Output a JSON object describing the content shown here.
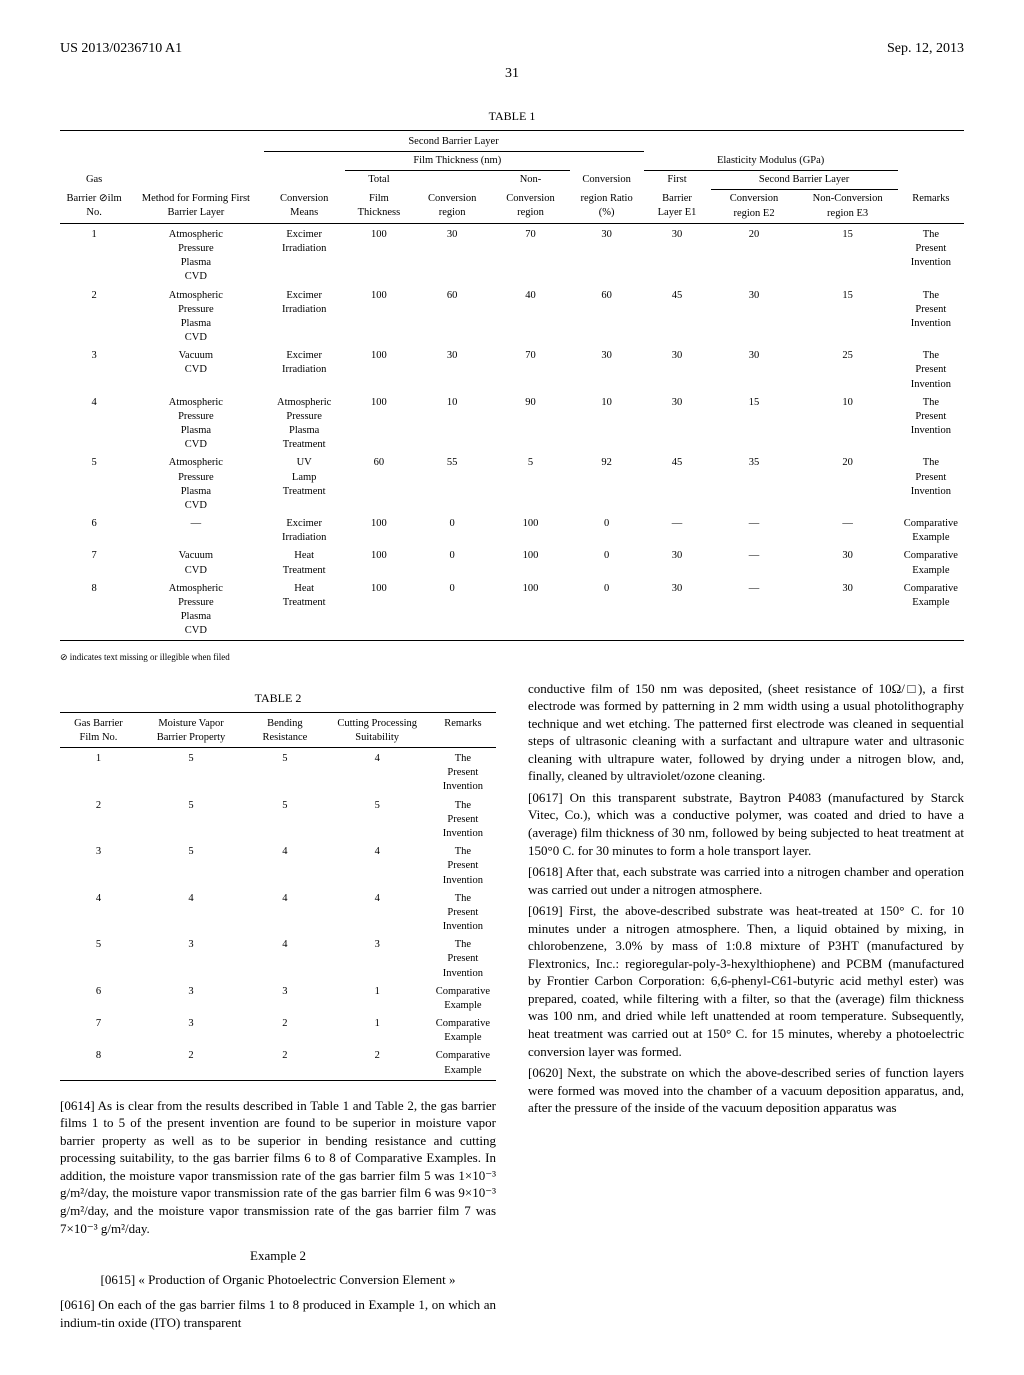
{
  "header": {
    "left": "US 2013/0236710 A1",
    "right": "Sep. 12, 2013"
  },
  "page_number": "31",
  "table1": {
    "caption": "TABLE 1",
    "group_headers": {
      "second_barrier": "Second Barrier Layer",
      "film_thickness": "Film Thickness (nm)",
      "elasticity": "Elasticity Modulus (GPa)",
      "second_barrier2": "Second Barrier Layer"
    },
    "headers_top": [
      "Gas",
      "",
      "",
      "Total",
      "",
      "Non-",
      "Conversion",
      "First",
      "",
      "",
      ""
    ],
    "headers_bot": [
      "Barrier ⊘ilm No.",
      "Method for Forming First Barrier Layer",
      "Conversion Means",
      "Film Thickness",
      "Conversion region",
      "Conversion region",
      "region Ratio (%)",
      "Barrier Layer E1",
      "Conversion region E2",
      "Non-Conversion region E3",
      "Remarks"
    ],
    "rows": [
      [
        "1",
        "Atmospheric Pressure Plasma CVD",
        "Excimer Irradiation",
        "100",
        "30",
        "70",
        "30",
        "30",
        "20",
        "15",
        "The Present Invention"
      ],
      [
        "2",
        "Atmospheric Pressure Plasma CVD",
        "Excimer Irradiation",
        "100",
        "60",
        "40",
        "60",
        "45",
        "30",
        "15",
        "The Present Invention"
      ],
      [
        "3",
        "Vacuum CVD",
        "Excimer Irradiation",
        "100",
        "30",
        "70",
        "30",
        "30",
        "30",
        "25",
        "The Present Invention"
      ],
      [
        "4",
        "Atmospheric Pressure Plasma CVD",
        "Atmospheric Pressure Plasma Treatment",
        "100",
        "10",
        "90",
        "10",
        "30",
        "15",
        "10",
        "The Present Invention"
      ],
      [
        "5",
        "Atmospheric Pressure Plasma CVD",
        "UV Lamp Treatment",
        "60",
        "55",
        "5",
        "92",
        "45",
        "35",
        "20",
        "The Present Invention"
      ],
      [
        "6",
        "—",
        "Excimer Irradiation",
        "100",
        "0",
        "100",
        "0",
        "—",
        "—",
        "—",
        "Comparative Example"
      ],
      [
        "7",
        "Vacuum CVD",
        "Heat Treatment",
        "100",
        "0",
        "100",
        "0",
        "30",
        "—",
        "30",
        "Comparative Example"
      ],
      [
        "8",
        "Atmospheric Pressure Plasma CVD",
        "Heat Treatment",
        "100",
        "0",
        "100",
        "0",
        "30",
        "—",
        "30",
        "Comparative Example"
      ]
    ],
    "footnote": "⊘ indicates text missing or illegible when filed"
  },
  "table2": {
    "caption": "TABLE 2",
    "headers": [
      "Gas Barrier Film No.",
      "Moisture Vapor Barrier Property",
      "Bending Resistance",
      "Cutting Processing Suitability",
      "Remarks"
    ],
    "rows": [
      [
        "1",
        "5",
        "5",
        "4",
        "The Present Invention"
      ],
      [
        "2",
        "5",
        "5",
        "5",
        "The Present Invention"
      ],
      [
        "3",
        "5",
        "4",
        "4",
        "The Present Invention"
      ],
      [
        "4",
        "4",
        "4",
        "4",
        "The Present Invention"
      ],
      [
        "5",
        "3",
        "4",
        "3",
        "The Present Invention"
      ],
      [
        "6",
        "3",
        "3",
        "1",
        "Comparative Example"
      ],
      [
        "7",
        "3",
        "2",
        "1",
        "Comparative Example"
      ],
      [
        "8",
        "2",
        "2",
        "2",
        "Comparative Example"
      ]
    ]
  },
  "paragraphs": {
    "p0614": "[0614]   As is clear from the results described in Table 1 and Table 2, the gas barrier films 1 to 5 of the present invention are found to be superior in moisture vapor barrier property as well as to be superior in bending resistance and cutting processing suitability, to the gas barrier films 6 to 8 of Comparative Examples. In addition, the moisture vapor transmission rate of the gas barrier film 5 was 1×10⁻³ g/m²/day, the moisture vapor transmission rate of the gas barrier film 6 was 9×10⁻³ g/m²/day, and the moisture vapor transmission rate of the gas barrier film 7 was 7×10⁻³ g/m²/day.",
    "example2": "Example 2",
    "p0615": "[0615]   « Production of Organic Photoelectric Conversion Element »",
    "p0616": "[0616]   On each of the gas barrier films 1 to 8 produced in Example 1, on which an indium-tin oxide (ITO) transparent",
    "p0616b": "conductive film of 150 nm was deposited, (sheet resistance of 10Ω/□), a first electrode was formed by patterning in 2 mm width using a usual photolithography technique and wet etching. The patterned first electrode was cleaned in sequential steps of ultrasonic cleaning with a surfactant and ultrapure water and ultrasonic cleaning with ultrapure water, followed by drying under a nitrogen blow, and, finally, cleaned by ultraviolet/ozone cleaning.",
    "p0617": "[0617]   On this transparent substrate, Baytron P4083 (manufactured by Starck Vitec, Co.), which was a conductive polymer, was coated and dried to have a (average) film thickness of 30 nm, followed by being subjected to heat treatment at 150°0 C. for 30 minutes to form a hole transport layer.",
    "p0618": "[0618]   After that, each substrate was carried into a nitrogen chamber and operation was carried out under a nitrogen atmosphere.",
    "p0619": "[0619]   First, the above-described substrate was heat-treated at 150° C. for 10 minutes under a nitrogen atmosphere. Then, a liquid obtained by mixing, in chlorobenzene, 3.0% by mass of 1:0.8 mixture of P3HT (manufactured by Flextronics, Inc.: regioregular-poly-3-hexylthiophene) and PCBM (manufactured by Frontier Carbon Corporation: 6,6-phenyl-C61-butyric acid methyl ester) was prepared, coated, while filtering with a filter, so that the (average) film thickness was 100 nm, and dried while left unattended at room temperature. Subsequently, heat treatment was carried out at 150° C. for 15 minutes, whereby a photoelectric conversion layer was formed.",
    "p0620": "[0620]   Next, the substrate on which the above-described series of function layers were formed was moved into the chamber of a vacuum deposition apparatus, and, after the pressure of the inside of the vacuum deposition apparatus was"
  }
}
